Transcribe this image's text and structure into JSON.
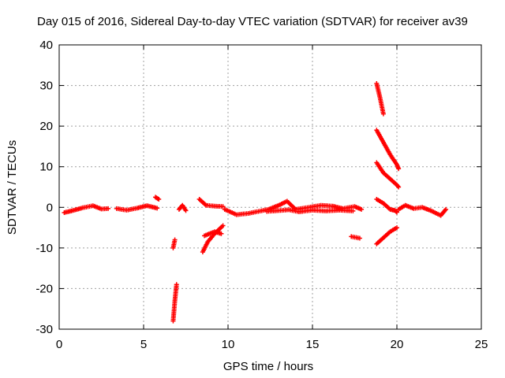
{
  "chart_data": {
    "type": "scatter",
    "title": "Day 015 of 2016, Sidereal Day-to-day VTEC variation (SDTVAR) for receiver av39",
    "xlabel": "GPS time / hours",
    "ylabel": "SDTVAR / TECUs",
    "xlim": [
      0,
      25
    ],
    "ylim": [
      -30,
      40
    ],
    "xticks": [
      0,
      5,
      10,
      15,
      20,
      25
    ],
    "yticks": [
      -30,
      -20,
      -10,
      0,
      10,
      20,
      30,
      40
    ],
    "grid": true,
    "marker": "+",
    "color": "#ff0000",
    "segments": [
      {
        "name": "arc-01",
        "points": [
          [
            0.3,
            -1.3
          ],
          [
            0.8,
            -0.8
          ],
          [
            1.4,
            -0.1
          ],
          [
            2.0,
            0.4
          ],
          [
            2.5,
            -0.4
          ],
          [
            2.9,
            -0.3
          ]
        ]
      },
      {
        "name": "arc-02",
        "points": [
          [
            3.4,
            -0.3
          ],
          [
            4.0,
            -0.7
          ],
          [
            4.6,
            -0.2
          ],
          [
            5.2,
            0.4
          ],
          [
            5.8,
            -0.2
          ]
        ]
      },
      {
        "name": "arc-03",
        "points": [
          [
            5.7,
            2.5
          ],
          [
            5.9,
            2.0
          ]
        ]
      },
      {
        "name": "arc-04",
        "points": [
          [
            6.75,
            -28
          ],
          [
            6.85,
            -23
          ],
          [
            6.95,
            -19
          ]
        ]
      },
      {
        "name": "arc-05",
        "points": [
          [
            6.75,
            -10
          ],
          [
            6.85,
            -8
          ]
        ]
      },
      {
        "name": "arc-06",
        "points": [
          [
            7.1,
            -0.5
          ],
          [
            7.3,
            0.5
          ],
          [
            7.5,
            -0.8
          ]
        ]
      },
      {
        "name": "arc-07",
        "points": [
          [
            8.3,
            2.0
          ],
          [
            8.7,
            0.5
          ],
          [
            9.2,
            0.3
          ],
          [
            9.7,
            0.2
          ]
        ]
      },
      {
        "name": "arc-08",
        "points": [
          [
            8.5,
            -11
          ],
          [
            8.8,
            -8.5
          ],
          [
            9.2,
            -6.5
          ],
          [
            9.7,
            -4.5
          ]
        ]
      },
      {
        "name": "arc-09",
        "points": [
          [
            8.6,
            -7.0
          ],
          [
            9.2,
            -6.0
          ],
          [
            9.6,
            -6.5
          ]
        ]
      },
      {
        "name": "arc-10",
        "points": [
          [
            9.8,
            -0.5
          ],
          [
            10.5,
            -1.8
          ],
          [
            11.2,
            -1.5
          ],
          [
            11.8,
            -1.0
          ],
          [
            12.4,
            -0.5
          ],
          [
            13.0,
            0.5
          ],
          [
            13.5,
            1.5
          ],
          [
            14.0,
            -0.5
          ],
          [
            14.8,
            0.0
          ],
          [
            15.5,
            0.5
          ],
          [
            16.2,
            0.3
          ],
          [
            16.8,
            -0.3
          ],
          [
            17.5,
            0.2
          ],
          [
            17.9,
            -0.5
          ]
        ]
      },
      {
        "name": "arc-11",
        "points": [
          [
            12.3,
            -1.0
          ],
          [
            13.0,
            -0.8
          ],
          [
            13.6,
            -0.6
          ],
          [
            14.2,
            -1.1
          ],
          [
            15.0,
            -0.7
          ],
          [
            15.8,
            -0.9
          ],
          [
            16.6,
            -0.7
          ],
          [
            17.4,
            -0.9
          ]
        ]
      },
      {
        "name": "arc-12",
        "points": [
          [
            17.3,
            -7.2
          ],
          [
            17.8,
            -7.6
          ]
        ]
      },
      {
        "name": "arc-13",
        "points": [
          [
            18.8,
            30.5
          ],
          [
            19.0,
            27
          ],
          [
            19.2,
            23
          ]
        ]
      },
      {
        "name": "arc-14",
        "points": [
          [
            18.8,
            19
          ],
          [
            19.2,
            16
          ],
          [
            19.6,
            13
          ],
          [
            20.0,
            10.5
          ],
          [
            20.1,
            9.5
          ]
        ]
      },
      {
        "name": "arc-15",
        "points": [
          [
            18.8,
            11
          ],
          [
            19.2,
            8.5
          ],
          [
            19.6,
            7
          ],
          [
            20.0,
            5.5
          ],
          [
            20.1,
            5.0
          ]
        ]
      },
      {
        "name": "arc-16",
        "points": [
          [
            18.8,
            2.0
          ],
          [
            19.2,
            1.0
          ],
          [
            19.6,
            -0.5
          ],
          [
            19.9,
            -0.8
          ],
          [
            20.0,
            -1.2
          ]
        ]
      },
      {
        "name": "arc-17",
        "points": [
          [
            18.8,
            -9
          ],
          [
            19.2,
            -7.5
          ],
          [
            19.6,
            -6.0
          ],
          [
            20.0,
            -5.0
          ]
        ]
      },
      {
        "name": "arc-18",
        "points": [
          [
            20.1,
            -0.5
          ],
          [
            20.5,
            0.5
          ],
          [
            21.0,
            -0.3
          ],
          [
            21.5,
            0.0
          ],
          [
            22.0,
            -0.8
          ],
          [
            22.6,
            -2.0
          ],
          [
            22.9,
            -0.5
          ]
        ]
      }
    ]
  }
}
